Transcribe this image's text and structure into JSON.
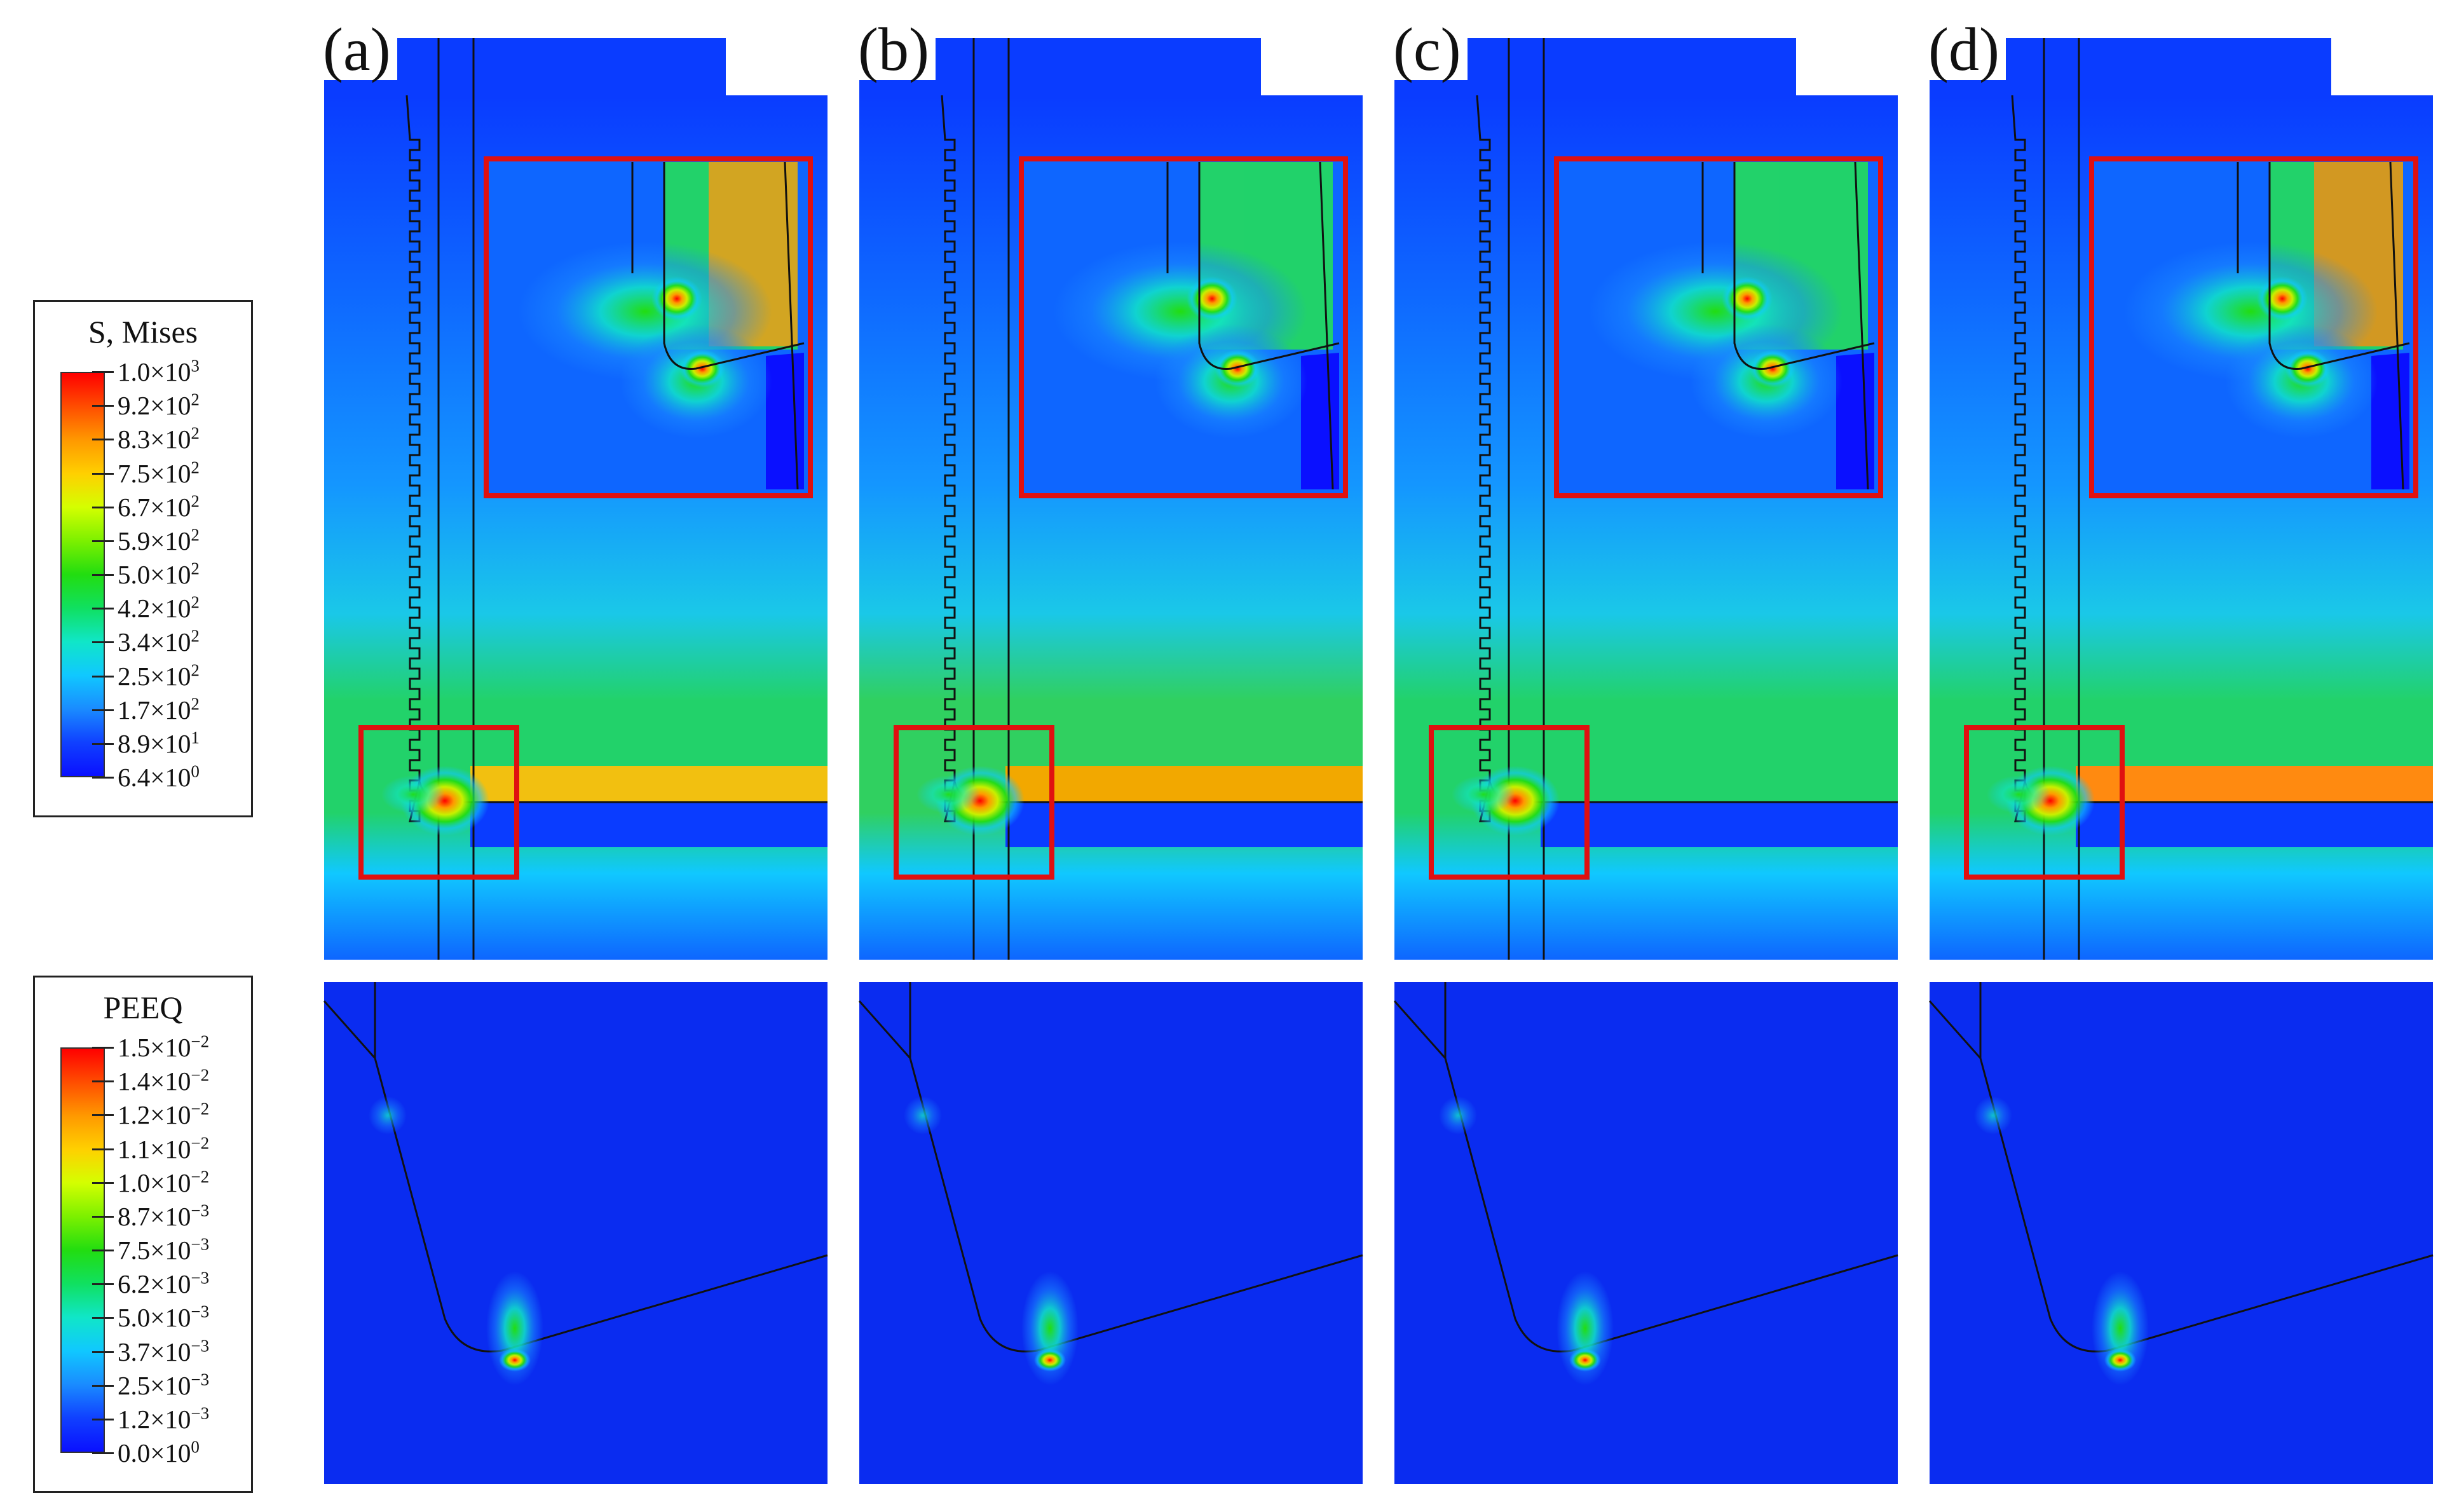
{
  "legends": [
    {
      "id": "mises",
      "title": "S, Mises",
      "labels": [
        {
          "mantissa": "1.0×10",
          "exp": "3"
        },
        {
          "mantissa": "9.2×10",
          "exp": "2"
        },
        {
          "mantissa": "8.3×10",
          "exp": "2"
        },
        {
          "mantissa": "7.5×10",
          "exp": "2"
        },
        {
          "mantissa": "6.7×10",
          "exp": "2"
        },
        {
          "mantissa": "5.9×10",
          "exp": "2"
        },
        {
          "mantissa": "5.0×10",
          "exp": "2"
        },
        {
          "mantissa": "4.2×10",
          "exp": "2"
        },
        {
          "mantissa": "3.4×10",
          "exp": "2"
        },
        {
          "mantissa": "2.5×10",
          "exp": "2"
        },
        {
          "mantissa": "1.7×10",
          "exp": "2"
        },
        {
          "mantissa": "8.9×10",
          "exp": "1"
        },
        {
          "mantissa": "6.4×10",
          "exp": "0"
        }
      ],
      "colors": [
        "#ff0000",
        "#ff4d00",
        "#ff9900",
        "#ffd000",
        "#d4ff00",
        "#7cf000",
        "#22dd10",
        "#10e060",
        "#10e6c8",
        "#10c8ff",
        "#1a8cff",
        "#1040ff",
        "#0a10ff"
      ]
    },
    {
      "id": "peeq",
      "title": "PEEQ",
      "labels": [
        {
          "mantissa": "1.5×10",
          "exp": "−2"
        },
        {
          "mantissa": "1.4×10",
          "exp": "−2"
        },
        {
          "mantissa": "1.2×10",
          "exp": "−2"
        },
        {
          "mantissa": "1.1×10",
          "exp": "−2"
        },
        {
          "mantissa": "1.0×10",
          "exp": "−2"
        },
        {
          "mantissa": "8.7×10",
          "exp": "−3"
        },
        {
          "mantissa": "7.5×10",
          "exp": "−3"
        },
        {
          "mantissa": "6.2×10",
          "exp": "−3"
        },
        {
          "mantissa": "5.0×10",
          "exp": "−3"
        },
        {
          "mantissa": "3.7×10",
          "exp": "−3"
        },
        {
          "mantissa": "2.5×10",
          "exp": "−3"
        },
        {
          "mantissa": "1.2×10",
          "exp": "−3"
        },
        {
          "mantissa": "0.0×10",
          "exp": "0"
        }
      ],
      "colors": [
        "#ff0000",
        "#ff4d00",
        "#ff9900",
        "#ffd000",
        "#d4ff00",
        "#7cf000",
        "#22dd10",
        "#10e060",
        "#10e6c8",
        "#10c8ff",
        "#1a8cff",
        "#1040ff",
        "#0a10ff"
      ]
    }
  ],
  "panels": [
    {
      "label": "(a)",
      "band_color": "#f2c010",
      "band_level": "high",
      "mid_color": "#22d26a",
      "inset_right_color": "#ff9a10"
    },
    {
      "label": "(b)",
      "band_color": "#f2a800",
      "band_level": "high",
      "mid_color": "#30d060",
      "inset_right_color": "#22d26a"
    },
    {
      "label": "(c)",
      "band_color": "#22d26a",
      "band_level": "medium",
      "mid_color": "#22d26a",
      "inset_right_color": "#22d26a"
    },
    {
      "label": "(d)",
      "band_color": "#ff8a10",
      "band_level": "high",
      "mid_color": "#22d26a",
      "inset_right_color": "#ff8a10"
    }
  ],
  "colors": {
    "field_low": "#0a3cff",
    "field_mid": "#1496ff",
    "inset_frame": "#e01010",
    "peeq_background": "#0a2cf0"
  }
}
